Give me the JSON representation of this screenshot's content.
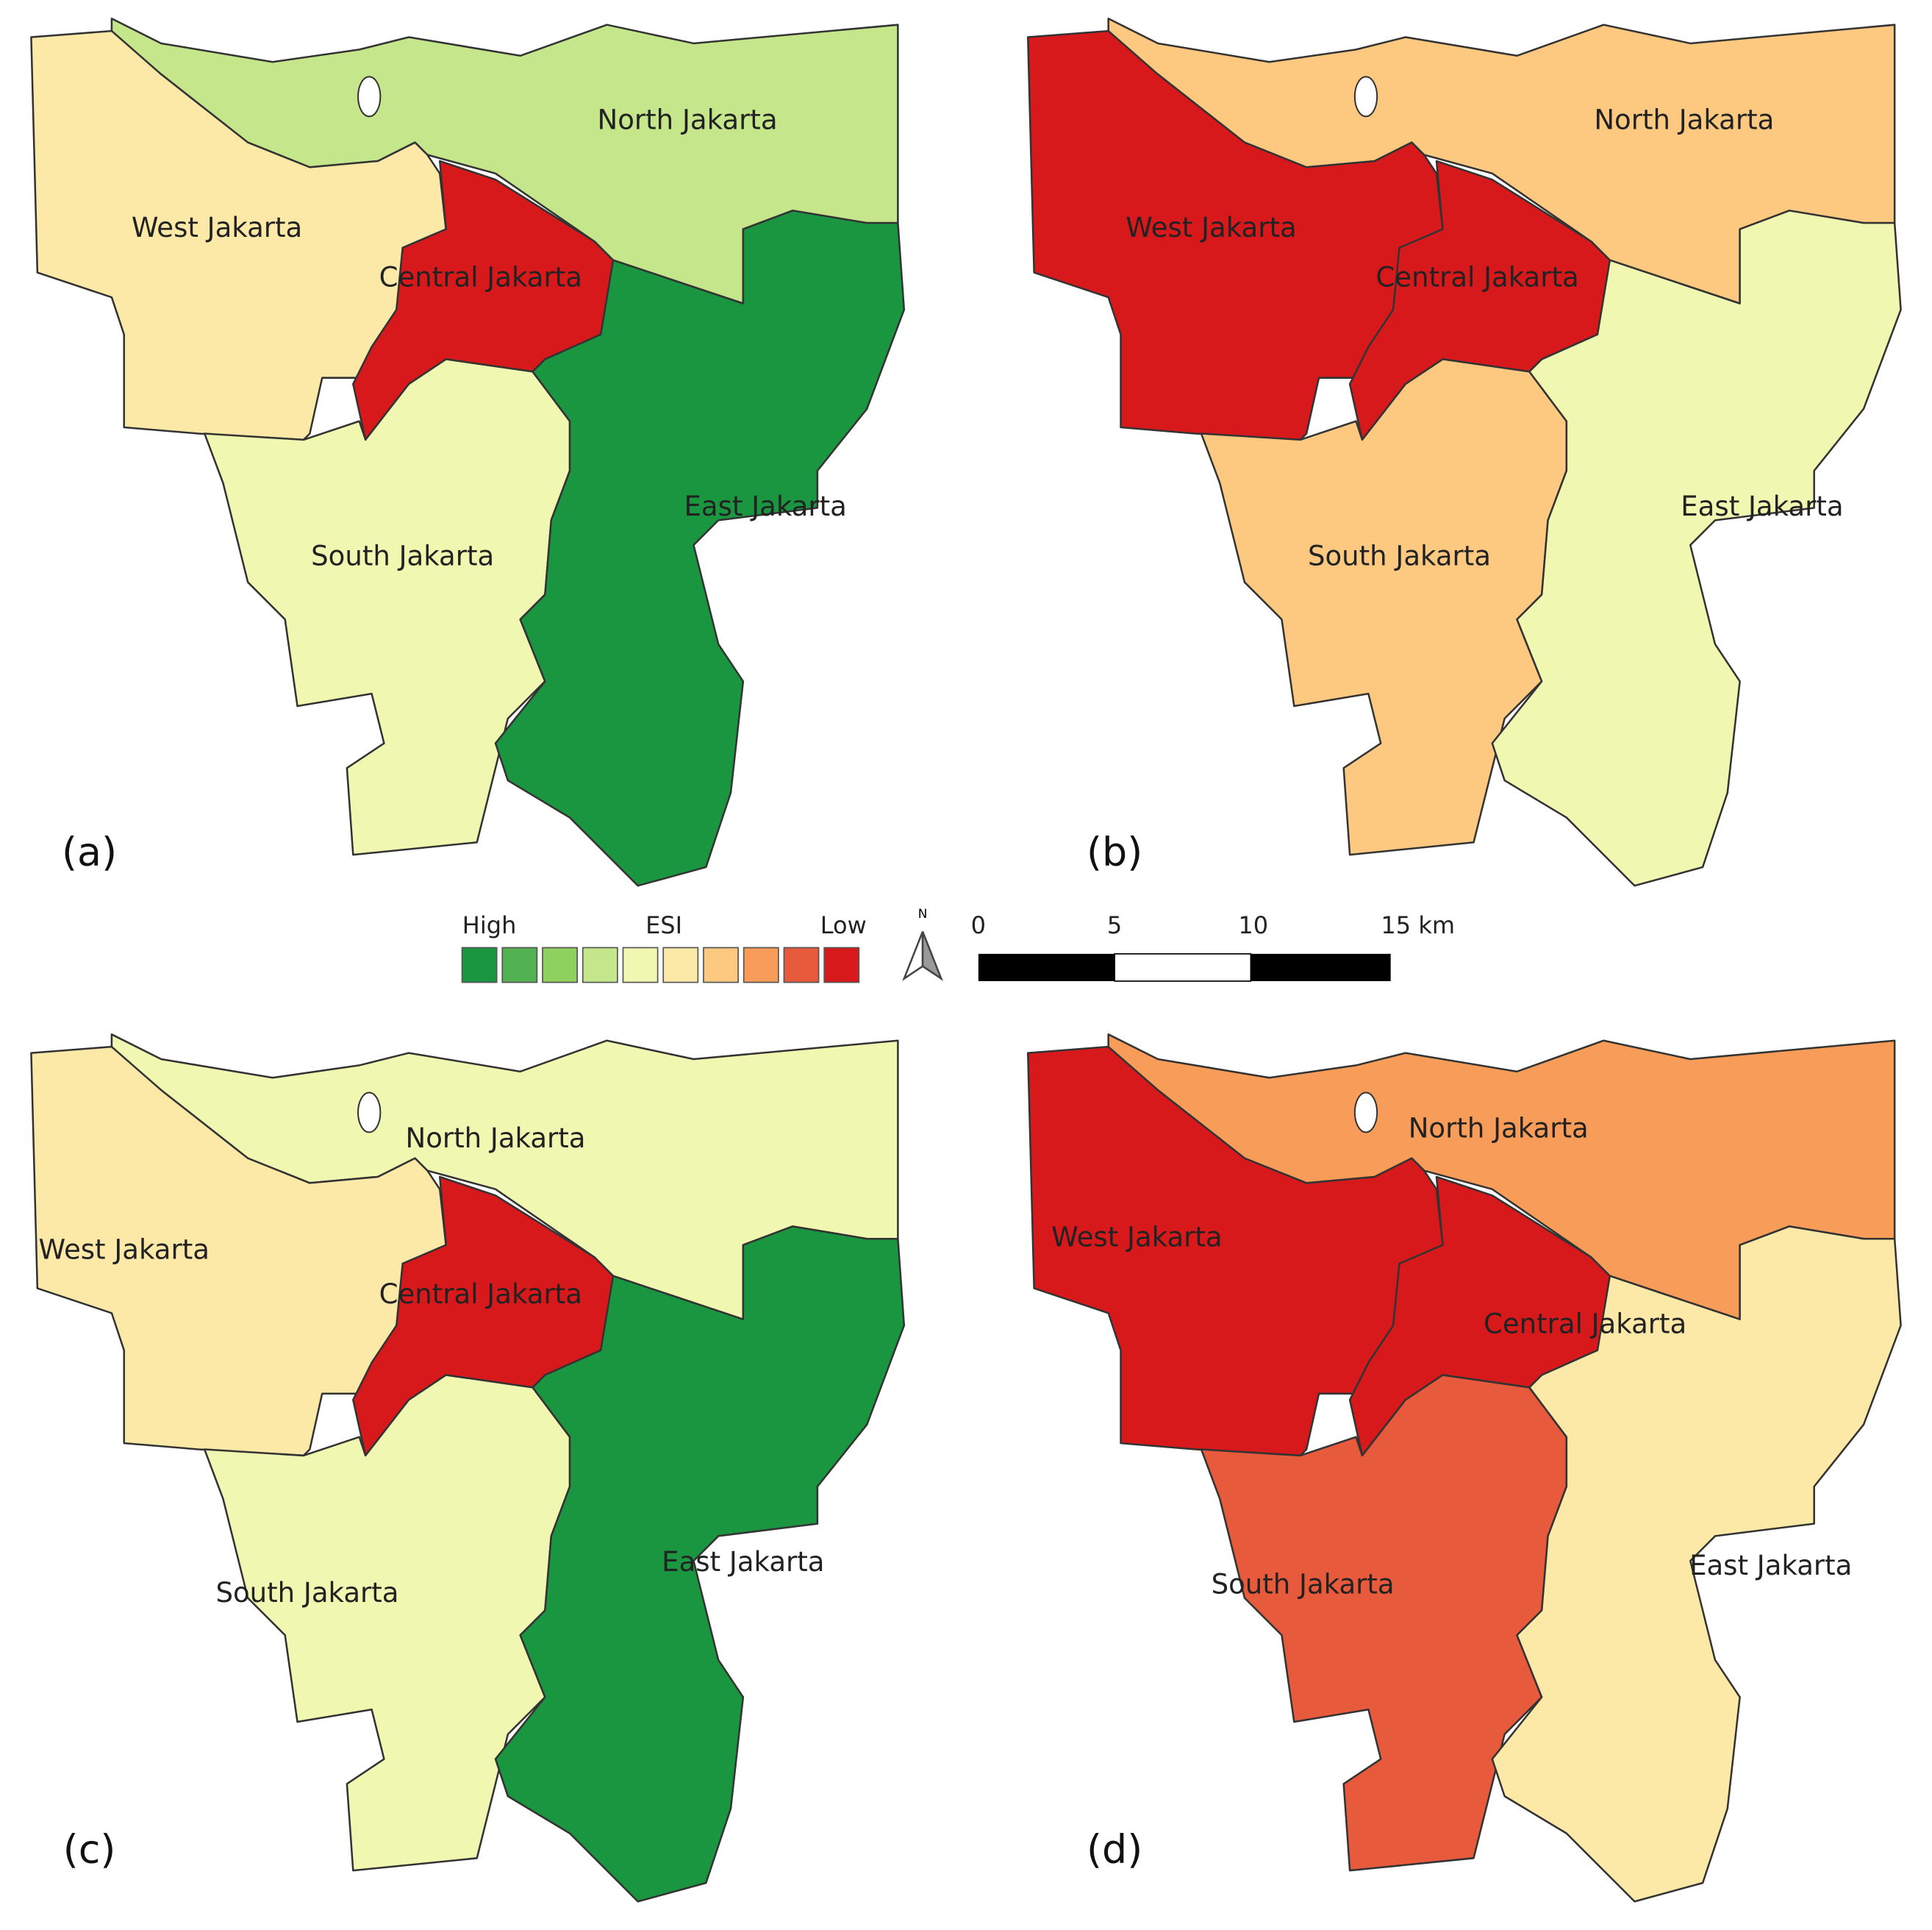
{
  "panels": [
    {
      "label": "(a)",
      "regions": [
        {
          "name": "North Jakarta",
          "color": "#c5e68a"
        },
        {
          "name": "West Jakarta",
          "color": "#fde9a7"
        },
        {
          "name": "Central Jakarta",
          "color": "#d7191c"
        },
        {
          "name": "South Jakarta",
          "color": "#eff7b0"
        },
        {
          "name": "East Jakarta",
          "color": "#1a9641"
        }
      ]
    },
    {
      "label": "(b)",
      "regions": [
        {
          "name": "North Jakarta",
          "color": "#fdc980"
        },
        {
          "name": "West Jakarta",
          "color": "#d7191c"
        },
        {
          "name": "Central Jakarta",
          "color": "#d7191c"
        },
        {
          "name": "South Jakarta",
          "color": "#fdc980"
        },
        {
          "name": "East Jakarta",
          "color": "#eff7b0"
        }
      ]
    },
    {
      "label": "(c)",
      "regions": [
        {
          "name": "North Jakarta",
          "color": "#eff7b0"
        },
        {
          "name": "West Jakarta",
          "color": "#fde9a7"
        },
        {
          "name": "Central Jakarta",
          "color": "#d7191c"
        },
        {
          "name": "South Jakarta",
          "color": "#eff7b0"
        },
        {
          "name": "East Jakarta",
          "color": "#1a9641"
        }
      ]
    },
    {
      "label": "(d)",
      "regions": [
        {
          "name": "North Jakarta",
          "color": "#f89d59"
        },
        {
          "name": "West Jakarta",
          "color": "#d7191c"
        },
        {
          "name": "Central Jakarta",
          "color": "#d7191c"
        },
        {
          "name": "South Jakarta",
          "color": "#e75a3b"
        },
        {
          "name": "East Jakarta",
          "color": "#fde9a7"
        }
      ]
    }
  ],
  "legend": {
    "high": "High",
    "title": "ESI",
    "low": "Low",
    "colors": [
      "#1a9641",
      "#52b151",
      "#8fd15f",
      "#c5e68a",
      "#eff7b0",
      "#fde9a7",
      "#fdc980",
      "#f89d59",
      "#e75a3b",
      "#d7191c"
    ]
  },
  "north_arrow": "N",
  "scale_bar": {
    "labels": [
      "0",
      "5",
      "10",
      "15 km"
    ]
  }
}
